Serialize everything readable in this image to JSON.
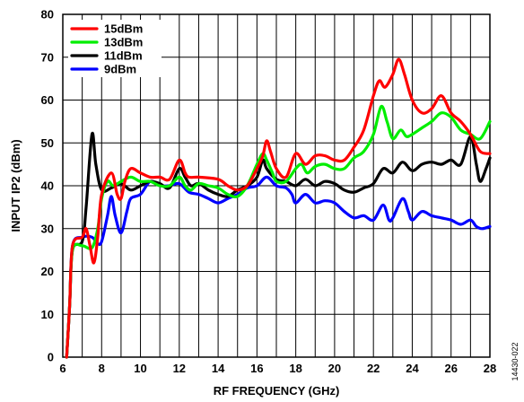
{
  "chart_data": {
    "type": "line",
    "xlabel": "RF FREQUENCY (GHz)",
    "ylabel": "INPUT IP2 (dBm)",
    "xlim": [
      6,
      28
    ],
    "ylim": [
      0,
      80
    ],
    "xticks": [
      6,
      8,
      10,
      12,
      14,
      16,
      18,
      20,
      22,
      24,
      26,
      28
    ],
    "yticks": [
      0,
      10,
      20,
      30,
      40,
      50,
      60,
      70,
      80
    ],
    "x_minor_step": 1,
    "grid": true,
    "legend_position": "top-left",
    "figure_id": "14430-022",
    "series": [
      {
        "name": "15dBm",
        "color": "#ff0000",
        "points": [
          [
            6.2,
            0
          ],
          [
            6.35,
            12
          ],
          [
            6.5,
            26
          ],
          [
            7,
            28
          ],
          [
            7.2,
            30
          ],
          [
            7.4,
            26
          ],
          [
            7.6,
            22
          ],
          [
            7.8,
            28
          ],
          [
            8,
            38
          ],
          [
            8.5,
            43
          ],
          [
            8.8,
            38
          ],
          [
            9,
            37
          ],
          [
            9.2,
            41
          ],
          [
            9.5,
            44
          ],
          [
            10,
            43
          ],
          [
            10.5,
            42
          ],
          [
            11,
            42
          ],
          [
            11.5,
            41.5
          ],
          [
            12,
            46
          ],
          [
            12.3,
            43
          ],
          [
            12.5,
            42
          ],
          [
            13,
            42
          ],
          [
            14,
            41.5
          ],
          [
            14.5,
            40
          ],
          [
            15,
            39
          ],
          [
            15.5,
            40
          ],
          [
            16,
            44
          ],
          [
            16.3,
            47
          ],
          [
            16.5,
            50.5
          ],
          [
            16.7,
            48
          ],
          [
            17,
            44
          ],
          [
            17.5,
            42
          ],
          [
            18,
            47.5
          ],
          [
            18.5,
            45
          ],
          [
            19,
            47
          ],
          [
            19.5,
            47
          ],
          [
            20,
            46
          ],
          [
            20.5,
            46
          ],
          [
            21,
            49
          ],
          [
            21.5,
            53
          ],
          [
            22,
            61
          ],
          [
            22.3,
            64.5
          ],
          [
            22.6,
            63
          ],
          [
            23,
            66
          ],
          [
            23.3,
            69.5
          ],
          [
            23.6,
            66
          ],
          [
            24,
            60
          ],
          [
            24.5,
            57
          ],
          [
            25,
            58
          ],
          [
            25.5,
            61
          ],
          [
            26,
            57
          ],
          [
            26.5,
            55
          ],
          [
            27,
            52
          ],
          [
            27.5,
            48
          ],
          [
            28,
            47.5
          ]
        ]
      },
      {
        "name": "13dBm",
        "color": "#00ee00",
        "points": [
          [
            6.2,
            0
          ],
          [
            6.35,
            12
          ],
          [
            6.5,
            25
          ],
          [
            7,
            26
          ],
          [
            7.5,
            25.5
          ],
          [
            7.8,
            30
          ],
          [
            8,
            37
          ],
          [
            8.3,
            41
          ],
          [
            8.6,
            40
          ],
          [
            9,
            41
          ],
          [
            9.5,
            42
          ],
          [
            10,
            41
          ],
          [
            10.5,
            41
          ],
          [
            11,
            40
          ],
          [
            11.5,
            40
          ],
          [
            12,
            42
          ],
          [
            12.3,
            40
          ],
          [
            12.6,
            39
          ],
          [
            13,
            40.5
          ],
          [
            13.5,
            40
          ],
          [
            14,
            39.5
          ],
          [
            14.5,
            38
          ],
          [
            15,
            37.5
          ],
          [
            15.5,
            40
          ],
          [
            16,
            45
          ],
          [
            16.3,
            47.5
          ],
          [
            16.5,
            46
          ],
          [
            16.8,
            43
          ],
          [
            17,
            41
          ],
          [
            17.5,
            41
          ],
          [
            18,
            44
          ],
          [
            18.3,
            45
          ],
          [
            18.6,
            43
          ],
          [
            19,
            44.5
          ],
          [
            19.5,
            45
          ],
          [
            20,
            44
          ],
          [
            20.5,
            44
          ],
          [
            21,
            46.5
          ],
          [
            21.5,
            48
          ],
          [
            22,
            52
          ],
          [
            22.4,
            58.5
          ],
          [
            22.7,
            55
          ],
          [
            23,
            51
          ],
          [
            23.4,
            53
          ],
          [
            23.7,
            51.5
          ],
          [
            24,
            52
          ],
          [
            24.5,
            53.5
          ],
          [
            25,
            55
          ],
          [
            25.5,
            57
          ],
          [
            26,
            56
          ],
          [
            26.5,
            53
          ],
          [
            27,
            52
          ],
          [
            27.5,
            51
          ],
          [
            28,
            55
          ]
        ]
      },
      {
        "name": "11dBm",
        "color": "#000000",
        "points": [
          [
            6.2,
            0
          ],
          [
            6.35,
            12
          ],
          [
            6.5,
            25
          ],
          [
            7,
            27
          ],
          [
            7.2,
            35
          ],
          [
            7.5,
            52
          ],
          [
            7.7,
            45
          ],
          [
            8,
            39
          ],
          [
            8.5,
            39.5
          ],
          [
            9,
            40.5
          ],
          [
            9.5,
            39
          ],
          [
            10,
            40
          ],
          [
            10.5,
            41
          ],
          [
            11,
            40.5
          ],
          [
            11.5,
            39.5
          ],
          [
            12,
            44
          ],
          [
            12.3,
            42
          ],
          [
            12.6,
            40
          ],
          [
            13,
            40.5
          ],
          [
            13.5,
            39
          ],
          [
            14,
            38
          ],
          [
            14.5,
            37.5
          ],
          [
            15,
            39
          ],
          [
            15.5,
            40
          ],
          [
            16,
            42
          ],
          [
            16.3,
            46
          ],
          [
            16.5,
            44
          ],
          [
            17,
            41.5
          ],
          [
            17.5,
            41
          ],
          [
            18,
            40
          ],
          [
            18.5,
            41.5
          ],
          [
            19,
            40
          ],
          [
            19.5,
            41
          ],
          [
            20,
            40.5
          ],
          [
            20.5,
            39
          ],
          [
            21,
            38.5
          ],
          [
            21.5,
            39.5
          ],
          [
            22,
            40.5
          ],
          [
            22.5,
            44
          ],
          [
            23,
            43
          ],
          [
            23.5,
            45.5
          ],
          [
            24,
            43.5
          ],
          [
            24.5,
            45
          ],
          [
            25,
            45.5
          ],
          [
            25.5,
            45
          ],
          [
            26,
            46
          ],
          [
            26.5,
            45
          ],
          [
            27,
            51.5
          ],
          [
            27.3,
            45
          ],
          [
            27.5,
            41
          ],
          [
            27.8,
            44
          ],
          [
            28,
            46.5
          ]
        ]
      },
      {
        "name": "9dBm",
        "color": "#0000ff",
        "points": [
          [
            6.2,
            0
          ],
          [
            6.35,
            12
          ],
          [
            6.5,
            26
          ],
          [
            7,
            28
          ],
          [
            7.5,
            28
          ],
          [
            7.8,
            26.5
          ],
          [
            8,
            27
          ],
          [
            8.3,
            33
          ],
          [
            8.5,
            37.5
          ],
          [
            8.7,
            33
          ],
          [
            9,
            29
          ],
          [
            9.3,
            34
          ],
          [
            9.5,
            37
          ],
          [
            10,
            38
          ],
          [
            10.5,
            41
          ],
          [
            11,
            40
          ],
          [
            11.5,
            40
          ],
          [
            12,
            40.5
          ],
          [
            12.5,
            38.5
          ],
          [
            13,
            38
          ],
          [
            13.5,
            37
          ],
          [
            14,
            36
          ],
          [
            14.5,
            37
          ],
          [
            15,
            38
          ],
          [
            15.5,
            39.5
          ],
          [
            16,
            40
          ],
          [
            16.5,
            42
          ],
          [
            17,
            40
          ],
          [
            17.5,
            39.5
          ],
          [
            17.8,
            38
          ],
          [
            18,
            36
          ],
          [
            18.5,
            38
          ],
          [
            19,
            36
          ],
          [
            19.5,
            36.5
          ],
          [
            20,
            36
          ],
          [
            20.5,
            34
          ],
          [
            21,
            32.5
          ],
          [
            21.5,
            33
          ],
          [
            22,
            32
          ],
          [
            22.5,
            35.5
          ],
          [
            22.8,
            32
          ],
          [
            23,
            32.5
          ],
          [
            23.5,
            37
          ],
          [
            23.8,
            34
          ],
          [
            24,
            32
          ],
          [
            24.5,
            34
          ],
          [
            25,
            33
          ],
          [
            25.5,
            32.5
          ],
          [
            26,
            32
          ],
          [
            26.5,
            31
          ],
          [
            27,
            32
          ],
          [
            27.3,
            30.5
          ],
          [
            27.6,
            30
          ],
          [
            28,
            30.5
          ]
        ]
      }
    ]
  }
}
